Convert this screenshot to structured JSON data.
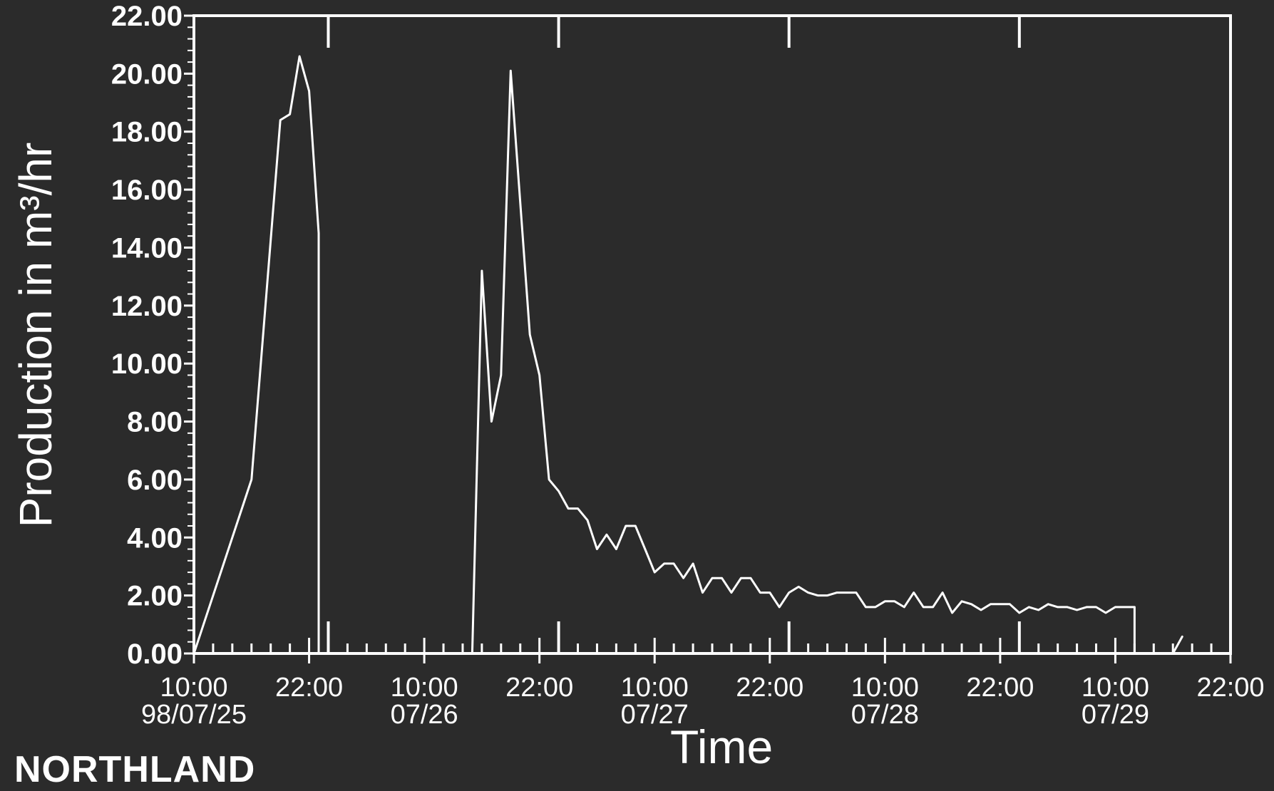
{
  "chart_data": {
    "type": "line",
    "ylabel": "Production in m³/hr",
    "xlabel": "Time",
    "footer_text": "NORTHLAND",
    "ylim": [
      0,
      22
    ],
    "xlim": [
      0,
      108
    ],
    "y_ticks": [
      "0.00",
      "2.00",
      "4.00",
      "6.00",
      "8.00",
      "10.00",
      "12.00",
      "14.00",
      "16.00",
      "18.00",
      "20.00",
      "22.00"
    ],
    "x_ticks": [
      {
        "x": 0,
        "time": "10:00",
        "date": "98/07/25"
      },
      {
        "x": 12,
        "time": "22:00",
        "date": ""
      },
      {
        "x": 24,
        "time": "10:00",
        "date": "07/26"
      },
      {
        "x": 36,
        "time": "22:00",
        "date": ""
      },
      {
        "x": 48,
        "time": "10:00",
        "date": "07/27"
      },
      {
        "x": 60,
        "time": "22:00",
        "date": ""
      },
      {
        "x": 72,
        "time": "10:00",
        "date": "07/28"
      },
      {
        "x": 84,
        "time": "22:00",
        "date": ""
      },
      {
        "x": 96,
        "time": "10:00",
        "date": "07/29"
      },
      {
        "x": 108,
        "time": "22:00",
        "date": ""
      }
    ],
    "series": [
      {
        "values": [
          [
            0,
            0.0
          ],
          [
            6,
            6.0
          ],
          [
            9,
            18.4
          ],
          [
            10,
            18.6
          ],
          [
            11,
            20.6
          ],
          [
            12,
            19.4
          ],
          [
            13,
            14.5
          ],
          [
            13,
            0.0
          ],
          [
            29,
            0.0
          ],
          [
            30,
            13.2
          ],
          [
            31,
            8.0
          ],
          [
            32,
            9.6
          ],
          [
            33,
            20.1
          ],
          [
            35,
            11.0
          ],
          [
            36,
            9.6
          ],
          [
            37,
            6.0
          ],
          [
            38,
            5.6
          ],
          [
            39,
            5.0
          ],
          [
            40,
            5.0
          ],
          [
            41,
            4.6
          ],
          [
            42,
            3.6
          ],
          [
            43,
            4.1
          ],
          [
            44,
            3.6
          ],
          [
            45,
            4.4
          ],
          [
            46,
            4.4
          ],
          [
            47,
            3.6
          ],
          [
            48,
            2.8
          ],
          [
            49,
            3.1
          ],
          [
            50,
            3.1
          ],
          [
            51,
            2.6
          ],
          [
            52,
            3.1
          ],
          [
            53,
            2.1
          ],
          [
            54,
            2.6
          ],
          [
            55,
            2.6
          ],
          [
            56,
            2.1
          ],
          [
            57,
            2.6
          ],
          [
            58,
            2.6
          ],
          [
            59,
            2.1
          ],
          [
            60,
            2.1
          ],
          [
            61,
            1.6
          ],
          [
            62,
            2.1
          ],
          [
            63,
            2.3
          ],
          [
            64,
            2.1
          ],
          [
            65,
            2.0
          ],
          [
            66,
            2.0
          ],
          [
            67,
            2.1
          ],
          [
            68,
            2.1
          ],
          [
            69,
            2.1
          ],
          [
            70,
            1.6
          ],
          [
            71,
            1.6
          ],
          [
            72,
            1.8
          ],
          [
            73,
            1.8
          ],
          [
            74,
            1.6
          ],
          [
            75,
            2.1
          ],
          [
            76,
            1.6
          ],
          [
            77,
            1.6
          ],
          [
            78,
            2.1
          ],
          [
            79,
            1.4
          ],
          [
            80,
            1.8
          ],
          [
            81,
            1.7
          ],
          [
            82,
            1.5
          ],
          [
            83,
            1.7
          ],
          [
            84,
            1.7
          ],
          [
            85,
            1.7
          ],
          [
            86,
            1.4
          ],
          [
            87,
            1.6
          ],
          [
            88,
            1.5
          ],
          [
            89,
            1.7
          ],
          [
            90,
            1.6
          ],
          [
            91,
            1.6
          ],
          [
            92,
            1.5
          ],
          [
            93,
            1.6
          ],
          [
            94,
            1.6
          ],
          [
            95,
            1.4
          ],
          [
            96,
            1.6
          ],
          [
            97,
            1.6
          ],
          [
            98,
            1.6
          ],
          [
            98,
            0.0
          ],
          [
            102,
            0.0
          ],
          [
            103,
            0.6
          ]
        ]
      }
    ],
    "grid": false,
    "colors": {
      "background": "#2b2b2b",
      "foreground": "#ffffff"
    }
  }
}
